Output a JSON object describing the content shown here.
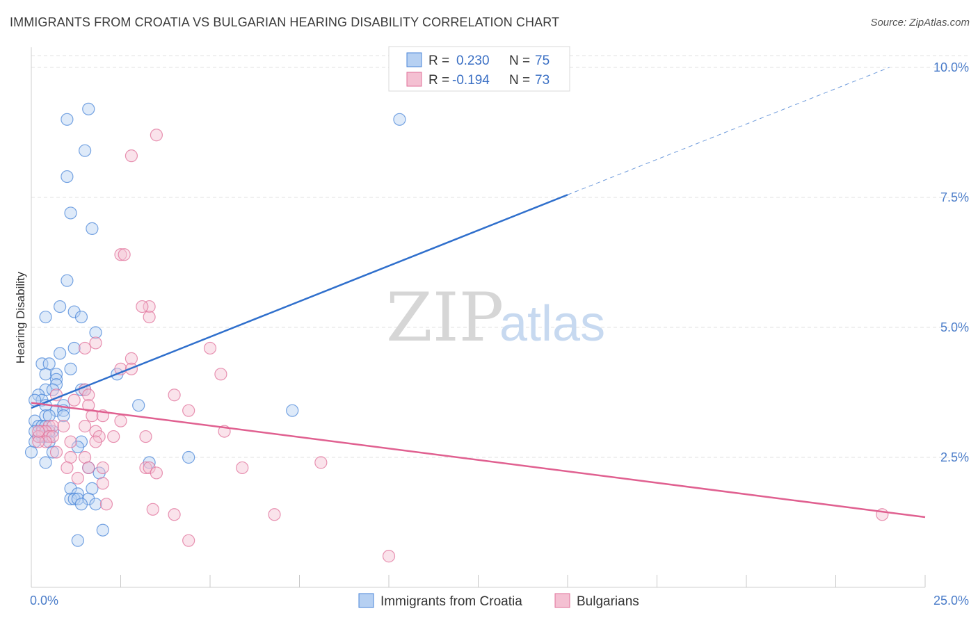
{
  "title": "IMMIGRANTS FROM CROATIA VS BULGARIAN HEARING DISABILITY CORRELATION CHART",
  "source": "Source: ZipAtlas.com",
  "watermark": {
    "zip": "ZIP",
    "atlas": "atlas"
  },
  "colors": {
    "blue": "#4a86d8",
    "blue_fill": "#b6d0f2",
    "blue_line": "#2f6fcc",
    "pink": "#e0709a",
    "pink_fill": "#f4c0d2",
    "pink_line": "#e06090"
  },
  "chart_data": {
    "type": "scatter",
    "title": "IMMIGRANTS FROM CROATIA VS BULGARIAN HEARING DISABILITY CORRELATION CHART",
    "xlabel": "",
    "ylabel": "Hearing Disability",
    "xlim": [
      0,
      25
    ],
    "ylim": [
      0,
      10.5
    ],
    "x_tick_labels": [
      "0.0%",
      "25.0%"
    ],
    "y_ticks": [
      2.5,
      5.0,
      7.5,
      10.0
    ],
    "y_tick_labels": [
      "2.5%",
      "5.0%",
      "7.5%",
      "10.0%"
    ],
    "grid": true,
    "legend": {
      "placement": "top-center",
      "entries": [
        {
          "r_label": "R =",
          "r_value": "0.230",
          "n_label": "N =",
          "n_value": "75"
        },
        {
          "r_label": "R =",
          "r_value": "-0.194",
          "n_label": "N =",
          "n_value": "73"
        }
      ]
    },
    "bottom_legend": [
      "Immigrants from Croatia",
      "Bulgarians"
    ],
    "series": [
      {
        "name": "Immigrants from Croatia",
        "color": "#4a86d8",
        "trend": {
          "x0": 0,
          "y0": 3.45,
          "x1": 15,
          "y1": 7.55,
          "dash_to_x": 24,
          "dash_to_y": 10.0
        },
        "points": [
          [
            1.6,
            9.2
          ],
          [
            1.0,
            9.0
          ],
          [
            10.3,
            9.0
          ],
          [
            1.5,
            8.4
          ],
          [
            1.0,
            7.9
          ],
          [
            1.1,
            7.2
          ],
          [
            1.7,
            6.9
          ],
          [
            1.0,
            5.9
          ],
          [
            0.8,
            5.4
          ],
          [
            0.4,
            5.2
          ],
          [
            1.2,
            5.3
          ],
          [
            1.4,
            5.2
          ],
          [
            1.8,
            4.9
          ],
          [
            1.2,
            4.6
          ],
          [
            0.8,
            4.5
          ],
          [
            0.3,
            4.3
          ],
          [
            0.5,
            4.3
          ],
          [
            1.1,
            4.2
          ],
          [
            0.4,
            4.1
          ],
          [
            0.7,
            4.1
          ],
          [
            2.4,
            4.1
          ],
          [
            0.7,
            4.0
          ],
          [
            0.7,
            3.9
          ],
          [
            0.4,
            3.8
          ],
          [
            0.6,
            3.8
          ],
          [
            1.4,
            3.8
          ],
          [
            1.5,
            3.8
          ],
          [
            0.2,
            3.7
          ],
          [
            0.3,
            3.6
          ],
          [
            0.1,
            3.6
          ],
          [
            0.4,
            3.5
          ],
          [
            0.9,
            3.5
          ],
          [
            3.0,
            3.5
          ],
          [
            0.7,
            3.4
          ],
          [
            0.9,
            3.4
          ],
          [
            7.3,
            3.4
          ],
          [
            0.4,
            3.3
          ],
          [
            0.5,
            3.3
          ],
          [
            0.9,
            3.3
          ],
          [
            0.1,
            3.2
          ],
          [
            0.2,
            3.1
          ],
          [
            0.3,
            3.1
          ],
          [
            0.4,
            3.1
          ],
          [
            0.6,
            3.0
          ],
          [
            0.1,
            3.0
          ],
          [
            0.5,
            3.0
          ],
          [
            0.2,
            2.9
          ],
          [
            0.4,
            2.9
          ],
          [
            0.3,
            2.9
          ],
          [
            0.1,
            2.8
          ],
          [
            0.5,
            2.8
          ],
          [
            1.4,
            2.8
          ],
          [
            1.3,
            2.7
          ],
          [
            0.0,
            2.6
          ],
          [
            0.6,
            2.6
          ],
          [
            4.4,
            2.5
          ],
          [
            0.4,
            2.4
          ],
          [
            3.3,
            2.4
          ],
          [
            1.6,
            2.3
          ],
          [
            1.9,
            2.2
          ],
          [
            1.7,
            1.9
          ],
          [
            1.1,
            1.9
          ],
          [
            1.3,
            1.8
          ],
          [
            1.1,
            1.7
          ],
          [
            1.2,
            1.7
          ],
          [
            1.3,
            1.7
          ],
          [
            1.6,
            1.7
          ],
          [
            1.4,
            1.6
          ],
          [
            1.8,
            1.6
          ],
          [
            2.0,
            1.1
          ],
          [
            1.3,
            0.9
          ]
        ]
      },
      {
        "name": "Bulgarians",
        "color": "#e0709a",
        "trend": {
          "x0": 0,
          "y0": 3.55,
          "x1": 25,
          "y1": 1.35
        },
        "points": [
          [
            3.5,
            8.7
          ],
          [
            2.8,
            8.3
          ],
          [
            2.5,
            6.4
          ],
          [
            2.6,
            6.4
          ],
          [
            3.3,
            5.4
          ],
          [
            3.1,
            5.4
          ],
          [
            3.3,
            5.2
          ],
          [
            1.8,
            4.7
          ],
          [
            1.5,
            4.6
          ],
          [
            5.0,
            4.6
          ],
          [
            2.8,
            4.4
          ],
          [
            2.5,
            4.2
          ],
          [
            2.8,
            4.2
          ],
          [
            5.3,
            4.1
          ],
          [
            1.5,
            3.8
          ],
          [
            0.7,
            3.7
          ],
          [
            1.6,
            3.7
          ],
          [
            4.0,
            3.7
          ],
          [
            1.2,
            3.6
          ],
          [
            1.6,
            3.5
          ],
          [
            4.4,
            3.4
          ],
          [
            1.7,
            3.3
          ],
          [
            2.0,
            3.3
          ],
          [
            2.5,
            3.2
          ],
          [
            0.9,
            3.1
          ],
          [
            1.5,
            3.1
          ],
          [
            0.5,
            3.1
          ],
          [
            0.6,
            3.1
          ],
          [
            5.4,
            3.0
          ],
          [
            1.8,
            3.0
          ],
          [
            1.9,
            2.9
          ],
          [
            2.3,
            2.9
          ],
          [
            3.2,
            2.9
          ],
          [
            0.3,
            3.0
          ],
          [
            0.4,
            3.0
          ],
          [
            0.5,
            2.9
          ],
          [
            0.6,
            2.9
          ],
          [
            0.2,
            2.9
          ],
          [
            0.4,
            2.8
          ],
          [
            0.2,
            2.8
          ],
          [
            1.1,
            2.8
          ],
          [
            1.8,
            2.8
          ],
          [
            0.2,
            3.0
          ],
          [
            0.7,
            2.6
          ],
          [
            1.1,
            2.5
          ],
          [
            1.5,
            2.5
          ],
          [
            3.2,
            2.3
          ],
          [
            5.9,
            2.3
          ],
          [
            8.1,
            2.4
          ],
          [
            1.0,
            2.3
          ],
          [
            2.0,
            2.3
          ],
          [
            1.6,
            2.3
          ],
          [
            3.3,
            2.3
          ],
          [
            1.3,
            2.1
          ],
          [
            3.5,
            2.2
          ],
          [
            2.0,
            2.0
          ],
          [
            3.4,
            1.5
          ],
          [
            4.0,
            1.4
          ],
          [
            6.8,
            1.4
          ],
          [
            2.1,
            1.6
          ],
          [
            23.8,
            1.4
          ],
          [
            4.4,
            0.9
          ],
          [
            10.0,
            0.6
          ]
        ]
      }
    ]
  }
}
